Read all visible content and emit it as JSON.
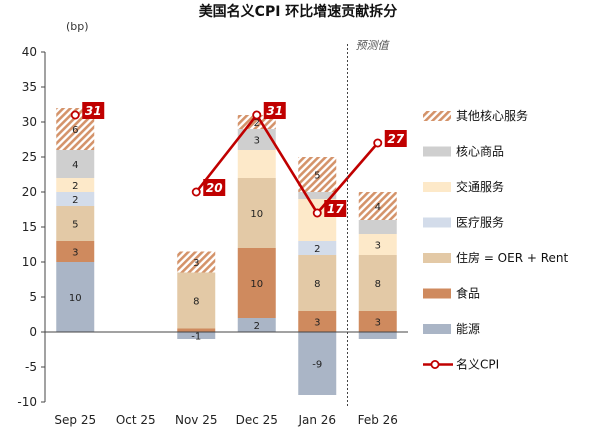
{
  "chart_data": {
    "type": "bar",
    "stacked": true,
    "title": "美国名义CPI 环比增速贡献拆分",
    "unit_label": "(bp)",
    "forecast_label": "预测值",
    "ylim": [
      -10,
      40
    ],
    "yticks": [
      40,
      35,
      30,
      25,
      20,
      15,
      10,
      5,
      0,
      -5,
      -10
    ],
    "categories": [
      "Sep 25",
      "Oct 25",
      "Nov 25",
      "Dec 25",
      "Jan 26",
      "Feb 26"
    ],
    "series": [
      {
        "key": "energy",
        "name": "能源",
        "color": "#aab5c6",
        "values": [
          10,
          null,
          -1,
          2,
          -9,
          -1
        ],
        "labels": [
          "10",
          "",
          "-1",
          "2",
          "-9",
          ""
        ]
      },
      {
        "key": "food",
        "name": "食品",
        "color": "#cf8a5e",
        "values": [
          3,
          null,
          0.5,
          10,
          3,
          3
        ],
        "labels": [
          "3",
          "",
          "",
          "10",
          "3",
          "3"
        ]
      },
      {
        "key": "housing",
        "name": "住房 = OER + Rent",
        "color": "#e3c9a6",
        "values": [
          5,
          null,
          8,
          10,
          8,
          8
        ],
        "labels": [
          "5",
          "",
          "8",
          "10",
          "8",
          "8"
        ]
      },
      {
        "key": "medical",
        "name": "医疗服务",
        "color": "#d3dcea",
        "values": [
          2,
          null,
          0,
          0,
          2,
          0
        ],
        "labels": [
          "2",
          "",
          "",
          "",
          "2",
          ""
        ]
      },
      {
        "key": "trans",
        "name": "交通服务",
        "color": "#fde9c9",
        "values": [
          2,
          null,
          0,
          4,
          6,
          3
        ],
        "labels": [
          "2",
          "",
          "",
          "",
          "",
          "3"
        ]
      },
      {
        "key": "core",
        "name": "核心商品",
        "color": "#cfcfcf",
        "values": [
          4,
          null,
          0,
          3,
          1,
          2
        ],
        "labels": [
          "4",
          "",
          "",
          "3",
          "",
          ""
        ]
      },
      {
        "key": "other",
        "name": "其他核心服务",
        "color": "#d4936a",
        "values": [
          6,
          null,
          3,
          2,
          5,
          4
        ],
        "labels": [
          "6",
          "",
          "3",
          "2",
          "5",
          "4"
        ],
        "hatched": true
      }
    ],
    "cpi_line": {
      "name": "名义CPI",
      "color": "#c00000",
      "values": [
        31,
        null,
        20,
        31,
        17,
        27
      ],
      "labels": [
        "31",
        "",
        "20",
        "31",
        "17",
        "27"
      ]
    },
    "legend_order": [
      "other",
      "core",
      "trans",
      "medical",
      "housing",
      "food",
      "energy",
      "cpi"
    ]
  }
}
